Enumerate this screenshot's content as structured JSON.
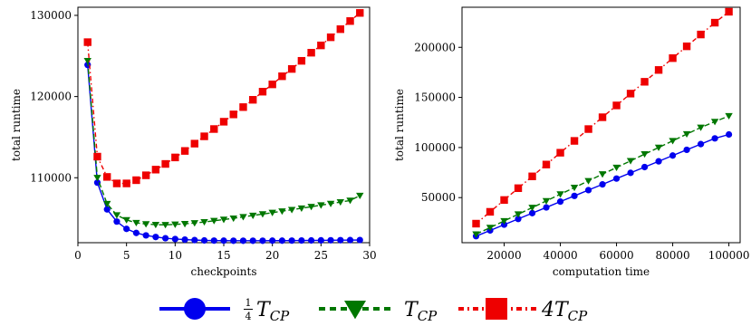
{
  "chart_data": [
    {
      "type": "line",
      "xlabel": "checkpoints",
      "ylabel": "total runtime",
      "xlim": [
        0,
        30
      ],
      "ylim": [
        102000,
        131000
      ],
      "xticks": [
        0,
        5,
        10,
        15,
        20,
        25,
        30
      ],
      "yticks": [
        110000,
        120000,
        130000
      ],
      "grid": false,
      "series": [
        {
          "name": "¼T_CP",
          "x": [
            1,
            2,
            3,
            4,
            5,
            6,
            7,
            8,
            9,
            10,
            11,
            12,
            13,
            14,
            15,
            16,
            17,
            18,
            19,
            20,
            21,
            22,
            23,
            24,
            25,
            26,
            27,
            28,
            29
          ],
          "y": [
            123900,
            109400,
            106100,
            104600,
            103700,
            103200,
            102900,
            102700,
            102550,
            102450,
            102380,
            102320,
            102280,
            102260,
            102250,
            102240,
            102240,
            102240,
            102240,
            102250,
            102250,
            102260,
            102270,
            102280,
            102290,
            102300,
            102310,
            102320,
            102330
          ]
        },
        {
          "name": "T_CP",
          "x": [
            1,
            2,
            3,
            4,
            5,
            6,
            7,
            8,
            9,
            10,
            11,
            12,
            13,
            14,
            15,
            16,
            17,
            18,
            19,
            20,
            21,
            22,
            23,
            24,
            25,
            26,
            27,
            28,
            29
          ],
          "y": [
            124400,
            110000,
            106800,
            105400,
            104800,
            104450,
            104300,
            104220,
            104200,
            104250,
            104320,
            104420,
            104550,
            104700,
            104850,
            105000,
            105180,
            105350,
            105520,
            105700,
            105880,
            106060,
            106240,
            106430,
            106620,
            106810,
            107000,
            107200,
            107800
          ]
        },
        {
          "name": "4T_CP",
          "x": [
            1,
            2,
            3,
            4,
            5,
            6,
            7,
            8,
            9,
            10,
            11,
            12,
            13,
            14,
            15,
            16,
            17,
            18,
            19,
            20,
            21,
            22,
            23,
            24,
            25,
            26,
            27,
            28,
            29
          ],
          "y": [
            126700,
            112600,
            110100,
            109300,
            109300,
            109700,
            110300,
            111000,
            111700,
            112500,
            113300,
            114200,
            115100,
            116000,
            116900,
            117800,
            118700,
            119600,
            120600,
            121500,
            122500,
            123400,
            124400,
            125400,
            126300,
            127300,
            128300,
            129300,
            130300
          ]
        }
      ]
    },
    {
      "type": "line",
      "xlabel": "computation time",
      "ylabel": "total runtime",
      "xlim": [
        5000,
        104000
      ],
      "ylim": [
        5000,
        240000
      ],
      "xticks": [
        20000,
        40000,
        60000,
        80000,
        100000
      ],
      "yticks": [
        50000,
        100000,
        150000,
        200000
      ],
      "grid": false,
      "series": [
        {
          "name": "¼T_CP",
          "x": [
            10000,
            15000,
            20000,
            25000,
            30000,
            35000,
            40000,
            45000,
            50000,
            55000,
            60000,
            65000,
            70000,
            75000,
            80000,
            85000,
            90000,
            95000,
            100000
          ],
          "y": [
            11500,
            17200,
            23000,
            28700,
            34500,
            40200,
            46000,
            51700,
            57500,
            63200,
            69000,
            74700,
            80500,
            86200,
            92000,
            97700,
            103400,
            109100,
            113000
          ]
        },
        {
          "name": "T_CP",
          "x": [
            10000,
            15000,
            20000,
            25000,
            30000,
            35000,
            40000,
            45000,
            50000,
            55000,
            60000,
            65000,
            70000,
            75000,
            80000,
            85000,
            90000,
            95000,
            100000
          ],
          "y": [
            13500,
            20000,
            26700,
            33400,
            40000,
            46700,
            53400,
            60000,
            66700,
            73400,
            80000,
            86700,
            93400,
            100000,
            106700,
            113400,
            120000,
            125800,
            131500
          ]
        },
        {
          "name": "4T_CP",
          "x": [
            10000,
            15000,
            20000,
            25000,
            30000,
            35000,
            40000,
            45000,
            50000,
            55000,
            60000,
            65000,
            70000,
            75000,
            80000,
            85000,
            90000,
            95000,
            100000
          ],
          "y": [
            24000,
            35800,
            47600,
            59400,
            71200,
            83000,
            94800,
            106600,
            118400,
            130200,
            142000,
            153800,
            165600,
            177400,
            189200,
            201000,
            212800,
            224600,
            235500
          ]
        }
      ]
    }
  ],
  "legend": {
    "placement": "bottom-center",
    "entries": [
      {
        "frac": "1",
        "den": "4",
        "sym": "T",
        "sub": "CP",
        "color": "#0000ee",
        "marker": "circle",
        "dash": "solid"
      },
      {
        "frac": "",
        "den": "",
        "sym": "T",
        "sub": "CP",
        "color": "#007700",
        "marker": "triangle-down",
        "dash": "dashed"
      },
      {
        "frac": "",
        "den": "",
        "sym": "4T",
        "sub": "CP",
        "color": "#ee0000",
        "marker": "square",
        "dash": "dash-dot"
      }
    ]
  },
  "colors": {
    "series": [
      "#0000ee",
      "#007700",
      "#ee0000"
    ],
    "axis": "#000000"
  }
}
